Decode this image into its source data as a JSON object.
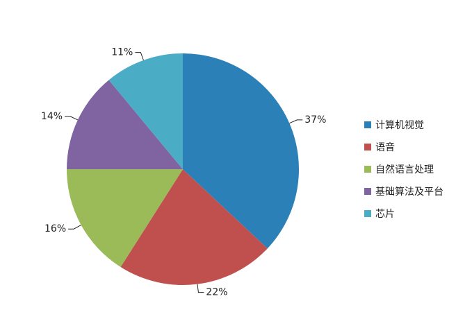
{
  "chart_data": {
    "type": "pie",
    "categories": [
      "计算机视觉",
      "语音",
      "自然语言处理",
      "基础算法及平台",
      "芯片"
    ],
    "values": [
      37,
      22,
      16,
      14,
      11
    ],
    "value_labels": [
      "37%",
      "22%",
      "16%",
      "14%",
      "11%"
    ],
    "colors": [
      "#2c80b8",
      "#c0504d",
      "#9bbb59",
      "#8064a2",
      "#4bacc6"
    ],
    "legend": "right"
  }
}
